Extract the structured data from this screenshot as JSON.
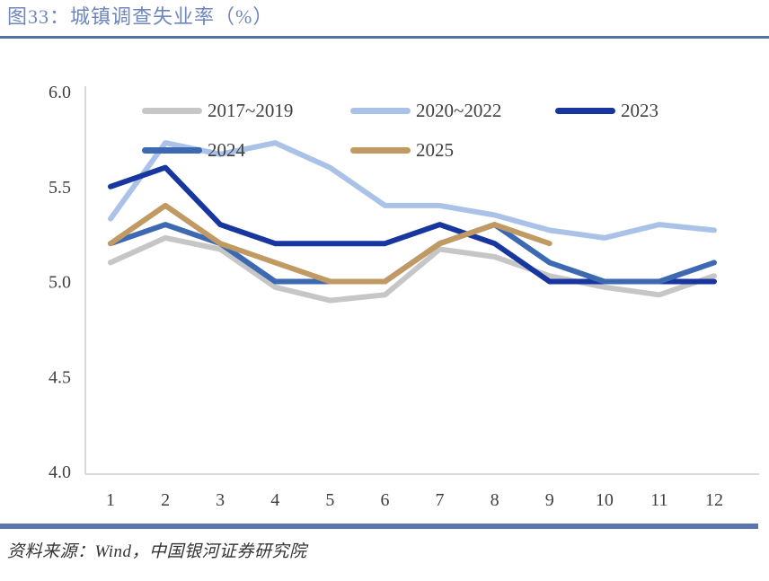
{
  "figure": {
    "title": "图33：城镇调查失业率（%）",
    "source": "资料来源：Wind，中国银河证券研究院"
  },
  "chart_data": {
    "type": "line",
    "title": "城镇调查失业率（%）",
    "xlabel": "",
    "ylabel": "",
    "x": [
      1,
      2,
      3,
      4,
      5,
      6,
      7,
      8,
      9,
      10,
      11,
      12
    ],
    "ylim": [
      4.0,
      6.0
    ],
    "yticks": [
      6.0,
      5.5,
      5.0,
      4.5,
      4.0
    ],
    "grid": false,
    "legend_position": "top-inside",
    "series": [
      {
        "name": "2017~2019",
        "color": "#c6c6c6",
        "values": [
          5.1,
          5.23,
          5.17,
          4.97,
          4.9,
          4.93,
          5.17,
          5.13,
          5.03,
          4.97,
          4.93,
          5.03
        ]
      },
      {
        "name": "2020~2022",
        "color": "#abc2e8",
        "values": [
          5.33,
          5.73,
          5.67,
          5.73,
          5.6,
          5.4,
          5.4,
          5.35,
          5.27,
          5.23,
          5.3,
          5.27
        ]
      },
      {
        "name": "2023",
        "color": "#17379e",
        "values": [
          5.5,
          5.6,
          5.3,
          5.2,
          5.2,
          5.2,
          5.3,
          5.2,
          5.0,
          5.0,
          5.0,
          5.0
        ]
      },
      {
        "name": "2024",
        "color": "#3d68b2",
        "values": [
          5.2,
          5.3,
          5.2,
          5.0,
          5.0,
          5.0,
          5.2,
          5.3,
          5.1,
          5.0,
          5.0,
          5.1
        ]
      },
      {
        "name": "2025",
        "color": "#c09a62",
        "values": [
          5.2,
          5.4,
          5.2,
          5.1,
          5.0,
          5.0,
          5.2,
          5.3,
          5.2,
          null,
          null,
          null
        ]
      }
    ]
  },
  "style": {
    "axis_color": "#d9d9d9",
    "tick_text_color": "#3f3f3f",
    "title_color": "#6d86bd",
    "top_rule_color": "#5272a3",
    "bottom_rule_color": "#5a76ae"
  }
}
